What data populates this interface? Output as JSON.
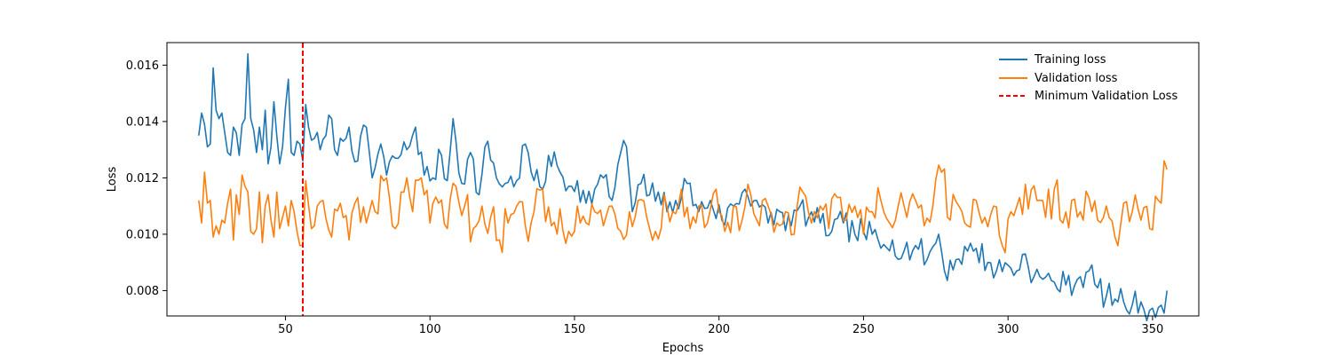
{
  "chart_data": {
    "type": "line",
    "title": "",
    "xlabel": "Epochs",
    "ylabel": "Loss",
    "xlim": [
      9,
      366
    ],
    "ylim": [
      0.0071,
      0.0168
    ],
    "xticks": [
      50,
      100,
      150,
      200,
      250,
      300,
      350
    ],
    "yticks": [
      0.008,
      0.01,
      0.012,
      0.014,
      0.016
    ],
    "ytick_labels": [
      "0.008",
      "0.010",
      "0.012",
      "0.014",
      "0.016"
    ],
    "grid": false,
    "legend_position": "top-right",
    "x_start": 20,
    "x_end": 355,
    "series": [
      {
        "name": "Training loss",
        "color": "#1f77b4",
        "anchors": [
          [
            20,
            0.0135
          ],
          [
            21,
            0.0143
          ],
          [
            22,
            0.0139
          ],
          [
            23,
            0.0131
          ],
          [
            24,
            0.0132
          ],
          [
            25,
            0.0159
          ],
          [
            26,
            0.0144
          ],
          [
            27,
            0.0141
          ],
          [
            28,
            0.0143
          ],
          [
            29,
            0.0136
          ],
          [
            30,
            0.0129
          ],
          [
            31,
            0.0128
          ],
          [
            32,
            0.0138
          ],
          [
            33,
            0.0136
          ],
          [
            34,
            0.0128
          ],
          [
            35,
            0.0139
          ],
          [
            36,
            0.0141
          ],
          [
            37,
            0.0164
          ],
          [
            38,
            0.0141
          ],
          [
            39,
            0.0137
          ],
          [
            40,
            0.0129
          ],
          [
            41,
            0.0138
          ],
          [
            42,
            0.013
          ],
          [
            43,
            0.0144
          ],
          [
            44,
            0.0125
          ],
          [
            45,
            0.0131
          ],
          [
            46,
            0.0147
          ],
          [
            47,
            0.0135
          ],
          [
            48,
            0.0125
          ],
          [
            49,
            0.0131
          ],
          [
            50,
            0.0145
          ],
          [
            51,
            0.0155
          ],
          [
            52,
            0.0129
          ],
          [
            53,
            0.0128
          ],
          [
            54,
            0.0133
          ],
          [
            55,
            0.0132
          ],
          [
            56,
            0.0126
          ],
          [
            57,
            0.0146
          ],
          [
            58,
            0.0138
          ],
          [
            60,
            0.0134
          ],
          [
            62,
            0.013
          ],
          [
            64,
            0.0135
          ],
          [
            66,
            0.0141
          ],
          [
            68,
            0.0128
          ],
          [
            70,
            0.0133
          ],
          [
            72,
            0.0138
          ],
          [
            75,
            0.0126
          ],
          [
            78,
            0.0138
          ],
          [
            80,
            0.012
          ],
          [
            83,
            0.0132
          ],
          [
            85,
            0.0121
          ],
          [
            88,
            0.0127
          ],
          [
            92,
            0.013
          ],
          [
            95,
            0.0138
          ],
          [
            98,
            0.0121
          ],
          [
            101,
            0.012
          ],
          [
            104,
            0.0128
          ],
          [
            106,
            0.0119
          ],
          [
            108,
            0.0141
          ],
          [
            111,
            0.0118
          ],
          [
            114,
            0.0129
          ],
          [
            117,
            0.0114
          ],
          [
            120,
            0.0133
          ],
          [
            123,
            0.012
          ],
          [
            126,
            0.0118
          ],
          [
            130,
            0.0119
          ],
          [
            133,
            0.0132
          ],
          [
            136,
            0.0119
          ],
          [
            139,
            0.0116
          ],
          [
            141,
            0.0128
          ],
          [
            145,
            0.0122
          ],
          [
            148,
            0.0117
          ],
          [
            151,
            0.0119
          ],
          [
            154,
            0.0111
          ],
          [
            157,
            0.0116
          ],
          [
            160,
            0.012
          ],
          [
            163,
            0.0112
          ],
          [
            166,
            0.0129
          ],
          [
            168,
            0.0131
          ],
          [
            170,
            0.0108
          ],
          [
            173,
            0.0118
          ],
          [
            176,
            0.0114
          ],
          [
            179,
            0.0115
          ],
          [
            182,
            0.0108
          ],
          [
            185,
            0.0112
          ],
          [
            189,
            0.0118
          ],
          [
            193,
            0.0108
          ],
          [
            197,
            0.0112
          ],
          [
            201,
            0.0105
          ],
          [
            205,
            0.011
          ],
          [
            209,
            0.0116
          ],
          [
            213,
            0.0112
          ],
          [
            217,
            0.0104
          ],
          [
            221,
            0.0108
          ],
          [
            225,
            0.0103
          ],
          [
            228,
            0.011
          ],
          [
            231,
            0.0106
          ],
          [
            235,
            0.0104
          ],
          [
            239,
            0.0101
          ],
          [
            243,
            0.0104
          ],
          [
            247,
            0.01
          ],
          [
            250,
            0.0101
          ],
          [
            253,
            0.01
          ],
          [
            256,
            0.0095
          ],
          [
            260,
            0.0098
          ],
          [
            264,
            0.0094
          ],
          [
            268,
            0.0096
          ],
          [
            272,
            0.0091
          ],
          [
            276,
            0.01
          ],
          [
            278,
            0.0087
          ],
          [
            282,
            0.0091
          ],
          [
            286,
            0.0094
          ],
          [
            289,
            0.0095
          ],
          [
            293,
            0.009
          ],
          [
            296,
            0.0087
          ],
          [
            300,
            0.0089
          ],
          [
            303,
            0.0087
          ],
          [
            306,
            0.0093
          ],
          [
            309,
            0.0085
          ],
          [
            312,
            0.0084
          ],
          [
            316,
            0.0083
          ],
          [
            320,
            0.0082
          ],
          [
            324,
            0.0084
          ],
          [
            328,
            0.0087
          ],
          [
            331,
            0.0081
          ],
          [
            334,
            0.0078
          ],
          [
            337,
            0.0077
          ],
          [
            340,
            0.0076
          ],
          [
            343,
            0.0075
          ],
          [
            346,
            0.0076
          ],
          [
            349,
            0.0073
          ],
          [
            352,
            0.0074
          ],
          [
            354,
            0.0072
          ],
          [
            355,
            0.008
          ]
        ],
        "noise": 0.0005
      },
      {
        "name": "Validation loss",
        "color": "#ff7f0e",
        "anchors": [
          [
            20,
            0.0112
          ],
          [
            21,
            0.0104
          ],
          [
            22,
            0.0122
          ],
          [
            23,
            0.0111
          ],
          [
            24,
            0.0112
          ],
          [
            25,
            0.0099
          ],
          [
            26,
            0.0103
          ],
          [
            27,
            0.01
          ],
          [
            28,
            0.0105
          ],
          [
            29,
            0.0104
          ],
          [
            30,
            0.0111
          ],
          [
            31,
            0.0116
          ],
          [
            32,
            0.0098
          ],
          [
            33,
            0.0114
          ],
          [
            34,
            0.0107
          ],
          [
            35,
            0.0121
          ],
          [
            36,
            0.0117
          ],
          [
            37,
            0.0115
          ],
          [
            38,
            0.0101
          ],
          [
            39,
            0.01
          ],
          [
            40,
            0.0102
          ],
          [
            41,
            0.0115
          ],
          [
            42,
            0.0097
          ],
          [
            43,
            0.011
          ],
          [
            44,
            0.0114
          ],
          [
            45,
            0.0105
          ],
          [
            46,
            0.0099
          ],
          [
            47,
            0.0115
          ],
          [
            48,
            0.0102
          ],
          [
            49,
            0.0106
          ],
          [
            50,
            0.011
          ],
          [
            51,
            0.0103
          ],
          [
            52,
            0.0112
          ],
          [
            53,
            0.0108
          ],
          [
            54,
            0.0101
          ],
          [
            55,
            0.0096
          ],
          [
            56,
            0.0096
          ],
          [
            57,
            0.0119
          ],
          [
            60,
            0.0103
          ],
          [
            63,
            0.0112
          ],
          [
            66,
            0.0099
          ],
          [
            69,
            0.0111
          ],
          [
            72,
            0.0098
          ],
          [
            75,
            0.0113
          ],
          [
            78,
            0.0104
          ],
          [
            81,
            0.0108
          ],
          [
            85,
            0.012
          ],
          [
            88,
            0.0102
          ],
          [
            91,
            0.0115
          ],
          [
            94,
            0.0108
          ],
          [
            97,
            0.012
          ],
          [
            100,
            0.0104
          ],
          [
            103,
            0.0111
          ],
          [
            106,
            0.0102
          ],
          [
            109,
            0.0117
          ],
          [
            112,
            0.011
          ],
          [
            115,
            0.0102
          ],
          [
            118,
            0.011
          ],
          [
            121,
            0.0106
          ],
          [
            124,
            0.0098
          ],
          [
            127,
            0.0104
          ],
          [
            130,
            0.011
          ],
          [
            133,
            0.0103
          ],
          [
            136,
            0.0108
          ],
          [
            139,
            0.0116
          ],
          [
            142,
            0.0103
          ],
          [
            145,
            0.0109
          ],
          [
            148,
            0.0101
          ],
          [
            151,
            0.011
          ],
          [
            154,
            0.0104
          ],
          [
            157,
            0.0108
          ],
          [
            160,
            0.0103
          ],
          [
            163,
            0.011
          ],
          [
            166,
            0.0101
          ],
          [
            169,
            0.0108
          ],
          [
            172,
            0.0112
          ],
          [
            175,
            0.0106
          ],
          [
            178,
            0.0101
          ],
          [
            181,
            0.0114
          ],
          [
            184,
            0.0108
          ],
          [
            187,
            0.0116
          ],
          [
            190,
            0.0102
          ],
          [
            193,
            0.011
          ],
          [
            196,
            0.0104
          ],
          [
            199,
            0.0116
          ],
          [
            202,
            0.0101
          ],
          [
            205,
            0.011
          ],
          [
            208,
            0.0105
          ],
          [
            211,
            0.0114
          ],
          [
            214,
            0.0103
          ],
          [
            217,
            0.011
          ],
          [
            220,
            0.0104
          ],
          [
            223,
            0.0108
          ],
          [
            226,
            0.01
          ],
          [
            229,
            0.0115
          ],
          [
            232,
            0.0104
          ],
          [
            235,
            0.011
          ],
          [
            238,
            0.0102
          ],
          [
            241,
            0.0113
          ],
          [
            244,
            0.0105
          ],
          [
            247,
            0.011
          ],
          [
            250,
            0.01
          ],
          [
            253,
            0.0108
          ],
          [
            256,
            0.0112
          ],
          [
            259,
            0.0104
          ],
          [
            262,
            0.011
          ],
          [
            265,
            0.0106
          ],
          [
            268,
            0.0112
          ],
          [
            271,
            0.0103
          ],
          [
            274,
            0.011
          ],
          [
            277,
            0.0122
          ],
          [
            280,
            0.0105
          ],
          [
            283,
            0.011
          ],
          [
            286,
            0.0103
          ],
          [
            289,
            0.0112
          ],
          [
            292,
            0.0106
          ],
          [
            295,
            0.011
          ],
          [
            298,
            0.0096
          ],
          [
            301,
            0.0108
          ],
          [
            304,
            0.0113
          ],
          [
            307,
            0.0109
          ],
          [
            310,
            0.0112
          ],
          [
            313,
            0.0106
          ],
          [
            316,
            0.0116
          ],
          [
            319,
            0.0104
          ],
          [
            322,
            0.0112
          ],
          [
            325,
            0.0108
          ],
          [
            328,
            0.0113
          ],
          [
            331,
            0.0105
          ],
          [
            334,
            0.011
          ],
          [
            337,
            0.0099
          ],
          [
            340,
            0.0111
          ],
          [
            343,
            0.0108
          ],
          [
            346,
            0.0105
          ],
          [
            349,
            0.0102
          ],
          [
            352,
            0.0112
          ],
          [
            355,
            0.0123
          ]
        ],
        "noise": 0.00075
      }
    ],
    "min_validation_loss": {
      "name": "Minimum Validation Loss",
      "x": 56,
      "color": "#ff0000",
      "style": "dashed"
    }
  }
}
